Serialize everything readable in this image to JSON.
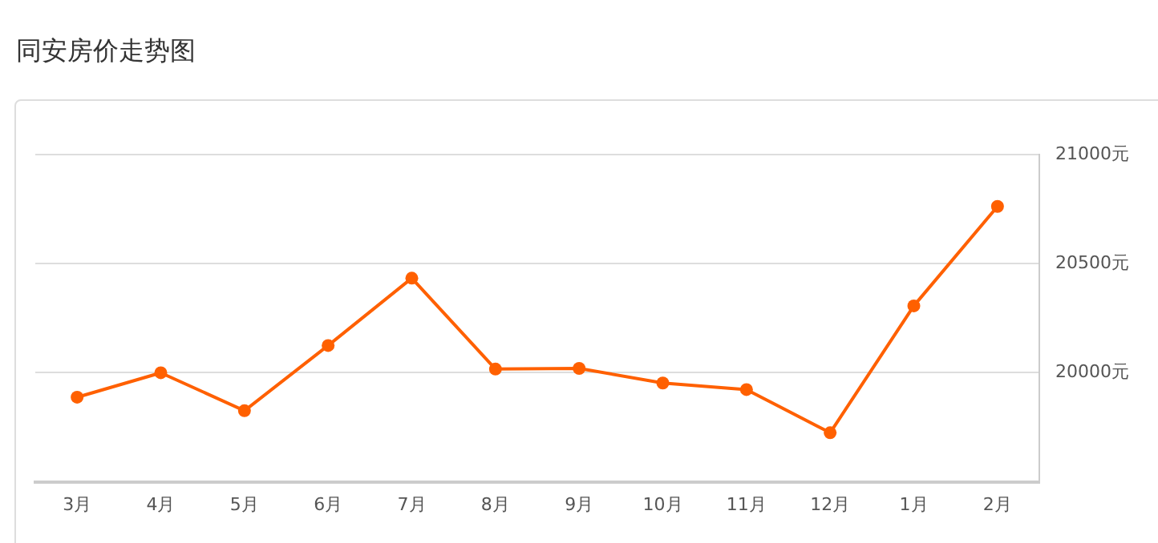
{
  "chart_data": {
    "type": "line",
    "title": "同安房价走势图",
    "categories": [
      "3月",
      "4月",
      "5月",
      "6月",
      "7月",
      "8月",
      "9月",
      "10月",
      "11月",
      "12月",
      "1月",
      "2月"
    ],
    "series": [
      {
        "color": "#ff6000",
        "values": [
          19888,
          20000,
          19826,
          20125,
          20434,
          20017,
          20020,
          19953,
          19923,
          19725,
          20307,
          20763
        ]
      }
    ],
    "ylim": [
      19500,
      21000
    ],
    "yticks": [
      {
        "value": 20000,
        "label": "20000元"
      },
      {
        "value": 20500,
        "label": "20500元"
      },
      {
        "value": 21000,
        "label": "21000元"
      }
    ],
    "grid": "y",
    "legend": false,
    "marker": "circle",
    "line_style": "solid"
  }
}
